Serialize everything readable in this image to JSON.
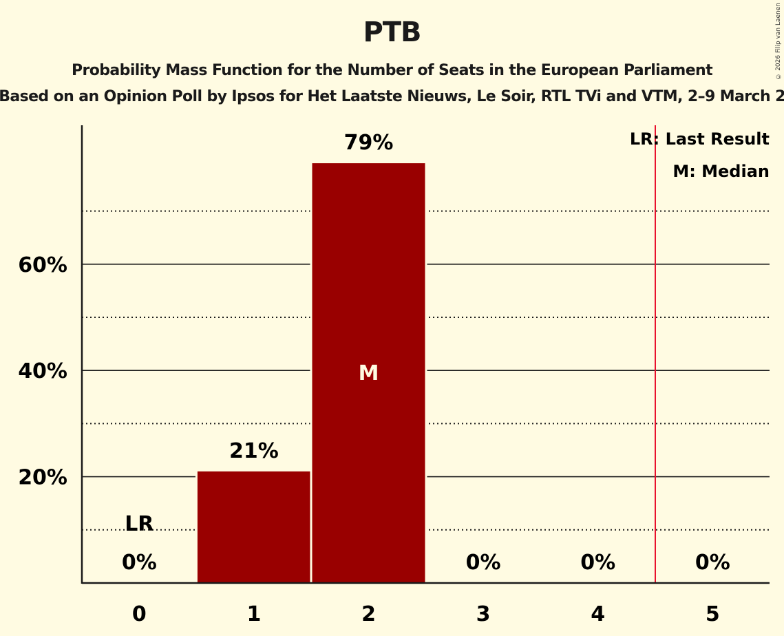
{
  "header": {
    "title": "PTB",
    "subtitle": "Probability Mass Function for the Number of Seats in the European Parliament",
    "subsubtitle": "Based on an Opinion Poll by Ipsos for Het Laatste Nieuws, Le Soir, RTL TVi and VTM, 2–9 March 2",
    "copyright": "© 2026 Filip van Laenen"
  },
  "legend": {
    "lr": "LR: Last Result",
    "median": "M: Median"
  },
  "colors": {
    "background": "#FFFBE2",
    "bar": "#990000",
    "last_result_line": "#E8112D",
    "axis": "#1a1a1a"
  },
  "chart_data": {
    "type": "bar",
    "title": "PTB",
    "subtitle": "Probability Mass Function for the Number of Seats in the European Parliament",
    "xlabel": "",
    "ylabel": "",
    "categories": [
      "0",
      "1",
      "2",
      "3",
      "4",
      "5"
    ],
    "values": [
      0,
      21,
      79,
      0,
      0,
      0
    ],
    "value_labels": [
      "0%",
      "21%",
      "79%",
      "0%",
      "0%",
      "0%"
    ],
    "ylim": [
      0,
      85
    ],
    "yticks": [
      20,
      40,
      60
    ],
    "ytick_labels": [
      "20%",
      "40%",
      "60%"
    ],
    "minor_gridlines": [
      10,
      30,
      50,
      70
    ],
    "grid": true,
    "median_seat": 2,
    "median_label": "M",
    "last_result_seat": 0,
    "last_result_label": "LR",
    "last_result_line_x": 4.5,
    "legend_position": "top-right",
    "legend": [
      "LR: Last Result",
      "M: Median"
    ]
  }
}
